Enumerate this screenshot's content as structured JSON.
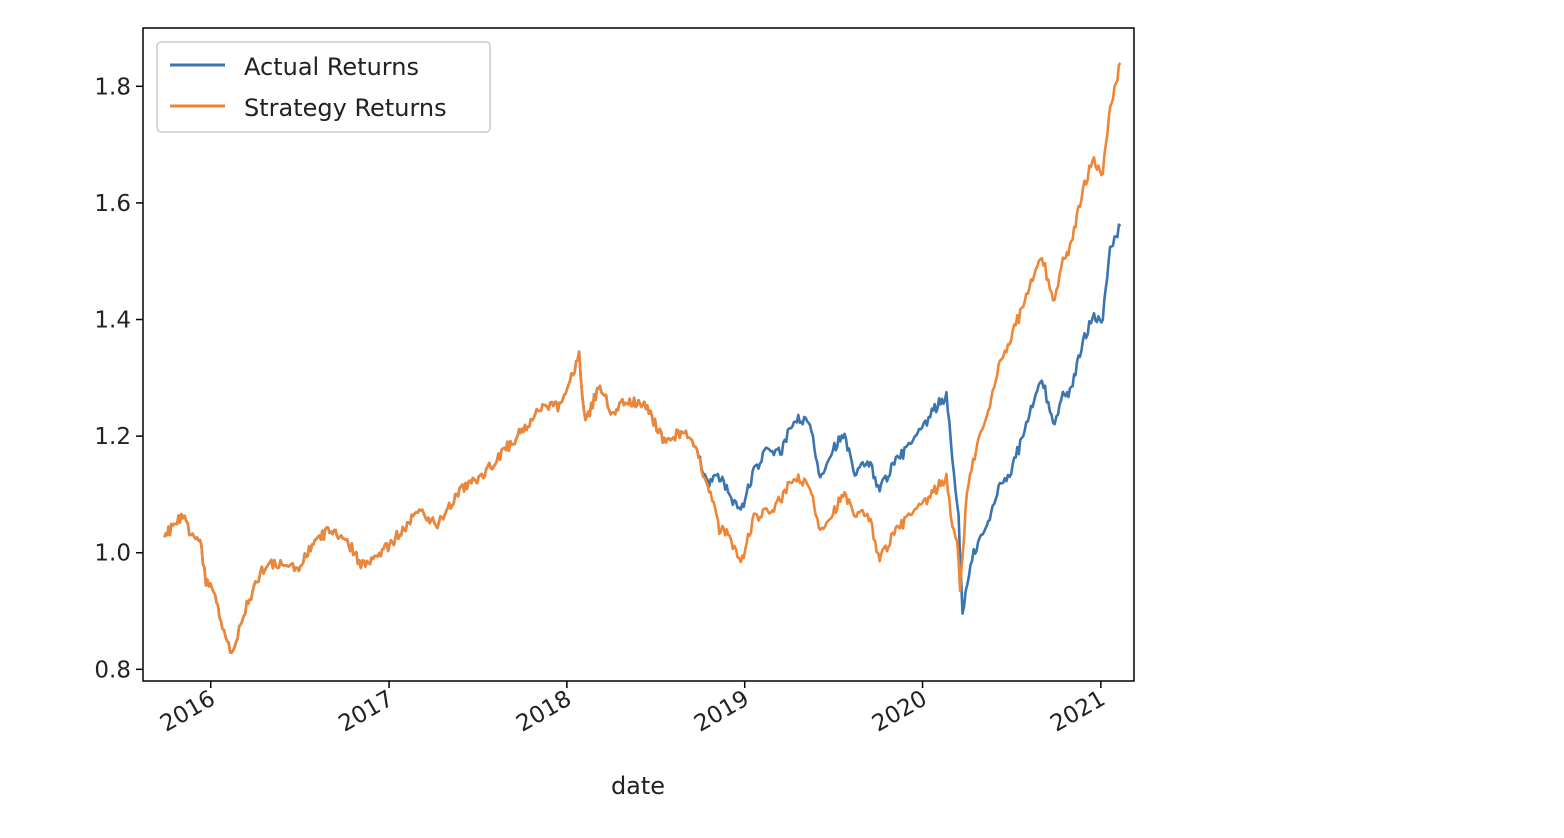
{
  "chart_data": {
    "type": "line",
    "title": "",
    "xlabel": "date",
    "ylabel": "",
    "xlim": [
      "2015-08-15",
      "2021-03-10"
    ],
    "ylim": [
      0.78,
      1.9
    ],
    "x_ticks": [
      "2016",
      "2017",
      "2018",
      "2019",
      "2020",
      "2021"
    ],
    "y_ticks": [
      "0.8",
      "1.0",
      "1.2",
      "1.4",
      "1.6",
      "1.8"
    ],
    "grid": false,
    "legend": "top-left",
    "series": [
      {
        "name": "Actual Returns",
        "color": "#3a75b0",
        "points": [
          [
            "2015-09-28",
            1.02
          ],
          [
            "2015-10-15",
            1.05
          ],
          [
            "2015-11-05",
            1.06
          ],
          [
            "2015-11-25",
            1.03
          ],
          [
            "2015-12-10",
            1.02
          ],
          [
            "2015-12-22",
            0.95
          ],
          [
            "2016-01-10",
            0.93
          ],
          [
            "2016-01-25",
            0.87
          ],
          [
            "2016-02-10",
            0.83
          ],
          [
            "2016-02-25",
            0.86
          ],
          [
            "2016-03-15",
            0.91
          ],
          [
            "2016-04-05",
            0.95
          ],
          [
            "2016-04-25",
            0.98
          ],
          [
            "2016-06-30",
            0.975
          ],
          [
            "2016-08-05",
            1.02
          ],
          [
            "2016-09-01",
            1.04
          ],
          [
            "2016-10-01",
            1.03
          ],
          [
            "2016-11-04",
            0.98
          ],
          [
            "2016-12-15",
            1.0
          ],
          [
            "2017-02-01",
            1.04
          ],
          [
            "2017-03-01",
            1.07
          ],
          [
            "2017-04-10",
            1.05
          ],
          [
            "2017-06-01",
            1.11
          ],
          [
            "2017-07-10",
            1.13
          ],
          [
            "2017-08-20",
            1.17
          ],
          [
            "2017-10-01",
            1.21
          ],
          [
            "2017-11-15",
            1.25
          ],
          [
            "2017-12-20",
            1.25
          ],
          [
            "2018-01-26",
            1.34
          ],
          [
            "2018-02-08",
            1.22
          ],
          [
            "2018-03-10",
            1.29
          ],
          [
            "2018-04-01",
            1.24
          ],
          [
            "2018-05-01",
            1.26
          ],
          [
            "2018-06-15",
            1.25
          ],
          [
            "2018-07-20",
            1.19
          ],
          [
            "2018-08-30",
            1.21
          ],
          [
            "2018-09-25",
            1.17
          ],
          [
            "2018-10-20",
            1.12
          ],
          [
            "2018-11-10",
            1.13
          ],
          [
            "2018-12-01",
            1.1
          ],
          [
            "2018-12-24",
            1.07
          ],
          [
            "2019-01-20",
            1.14
          ],
          [
            "2019-02-20",
            1.18
          ],
          [
            "2019-03-15",
            1.17
          ],
          [
            "2019-04-15",
            1.23
          ],
          [
            "2019-05-15",
            1.22
          ],
          [
            "2019-06-05",
            1.13
          ],
          [
            "2019-07-01",
            1.18
          ],
          [
            "2019-07-25",
            1.2
          ],
          [
            "2019-08-15",
            1.13
          ],
          [
            "2019-09-10",
            1.16
          ],
          [
            "2019-10-05",
            1.11
          ],
          [
            "2019-11-01",
            1.15
          ],
          [
            "2019-12-01",
            1.18
          ],
          [
            "2019-12-31",
            1.21
          ],
          [
            "2020-01-20",
            1.24
          ],
          [
            "2020-02-19",
            1.27
          ],
          [
            "2020-02-28",
            1.19
          ],
          [
            "2020-03-15",
            1.06
          ],
          [
            "2020-03-23",
            0.9
          ],
          [
            "2020-04-15",
            1.0
          ],
          [
            "2020-05-15",
            1.05
          ],
          [
            "2020-06-08",
            1.12
          ],
          [
            "2020-07-01",
            1.14
          ],
          [
            "2020-08-01",
            1.22
          ],
          [
            "2020-09-02",
            1.3
          ],
          [
            "2020-09-25",
            1.22
          ],
          [
            "2020-10-15",
            1.27
          ],
          [
            "2020-11-01",
            1.28
          ],
          [
            "2020-11-25",
            1.36
          ],
          [
            "2020-12-15",
            1.41
          ],
          [
            "2021-01-05",
            1.4
          ],
          [
            "2021-01-20",
            1.52
          ],
          [
            "2021-02-10",
            1.56
          ]
        ]
      },
      {
        "name": "Strategy Returns",
        "color": "#ef8636",
        "points": [
          [
            "2015-09-28",
            1.02
          ],
          [
            "2015-10-15",
            1.05
          ],
          [
            "2015-11-05",
            1.06
          ],
          [
            "2015-11-25",
            1.03
          ],
          [
            "2015-12-10",
            1.02
          ],
          [
            "2015-12-22",
            0.95
          ],
          [
            "2016-01-10",
            0.93
          ],
          [
            "2016-01-25",
            0.87
          ],
          [
            "2016-02-10",
            0.83
          ],
          [
            "2016-02-25",
            0.86
          ],
          [
            "2016-03-15",
            0.91
          ],
          [
            "2016-04-05",
            0.95
          ],
          [
            "2016-04-25",
            0.98
          ],
          [
            "2016-06-30",
            0.975
          ],
          [
            "2016-08-05",
            1.02
          ],
          [
            "2016-09-01",
            1.04
          ],
          [
            "2016-10-01",
            1.03
          ],
          [
            "2016-11-04",
            0.98
          ],
          [
            "2016-12-15",
            1.0
          ],
          [
            "2017-02-01",
            1.04
          ],
          [
            "2017-03-01",
            1.07
          ],
          [
            "2017-04-10",
            1.05
          ],
          [
            "2017-06-01",
            1.11
          ],
          [
            "2017-07-10",
            1.13
          ],
          [
            "2017-08-20",
            1.17
          ],
          [
            "2017-10-01",
            1.21
          ],
          [
            "2017-11-15",
            1.25
          ],
          [
            "2017-12-20",
            1.25
          ],
          [
            "2018-01-26",
            1.34
          ],
          [
            "2018-02-08",
            1.22
          ],
          [
            "2018-03-10",
            1.29
          ],
          [
            "2018-04-01",
            1.24
          ],
          [
            "2018-05-01",
            1.26
          ],
          [
            "2018-06-15",
            1.25
          ],
          [
            "2018-07-20",
            1.19
          ],
          [
            "2018-08-30",
            1.21
          ],
          [
            "2018-09-25",
            1.17
          ],
          [
            "2018-10-20",
            1.11
          ],
          [
            "2018-11-10",
            1.04
          ],
          [
            "2018-12-01",
            1.03
          ],
          [
            "2018-12-24",
            0.98
          ],
          [
            "2019-01-20",
            1.06
          ],
          [
            "2019-02-20",
            1.07
          ],
          [
            "2019-03-15",
            1.09
          ],
          [
            "2019-04-15",
            1.13
          ],
          [
            "2019-05-15",
            1.11
          ],
          [
            "2019-06-05",
            1.04
          ],
          [
            "2019-07-01",
            1.07
          ],
          [
            "2019-07-25",
            1.1
          ],
          [
            "2019-08-15",
            1.06
          ],
          [
            "2019-09-10",
            1.07
          ],
          [
            "2019-10-05",
            0.99
          ],
          [
            "2019-11-01",
            1.03
          ],
          [
            "2019-12-01",
            1.06
          ],
          [
            "2019-12-31",
            1.08
          ],
          [
            "2020-01-20",
            1.1
          ],
          [
            "2020-02-19",
            1.13
          ],
          [
            "2020-02-28",
            1.06
          ],
          [
            "2020-03-12",
            1.02
          ],
          [
            "2020-03-18",
            0.94
          ],
          [
            "2020-04-01",
            1.1
          ],
          [
            "2020-04-20",
            1.18
          ],
          [
            "2020-05-15",
            1.24
          ],
          [
            "2020-06-08",
            1.33
          ],
          [
            "2020-07-01",
            1.37
          ],
          [
            "2020-08-01",
            1.44
          ],
          [
            "2020-09-02",
            1.51
          ],
          [
            "2020-09-25",
            1.43
          ],
          [
            "2020-10-15",
            1.5
          ],
          [
            "2020-11-01",
            1.53
          ],
          [
            "2020-11-25",
            1.62
          ],
          [
            "2020-12-15",
            1.68
          ],
          [
            "2021-01-05",
            1.65
          ],
          [
            "2021-01-20",
            1.76
          ],
          [
            "2021-02-10",
            1.84
          ]
        ]
      }
    ]
  }
}
